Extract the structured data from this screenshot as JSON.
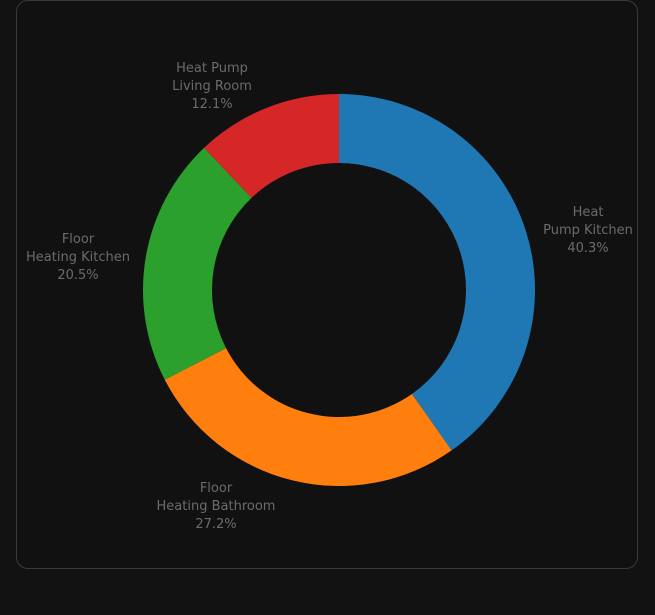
{
  "chart_data": {
    "type": "pie",
    "hole": true,
    "colors": [
      "#1f77b4",
      "#ff7f0e",
      "#2ca02c",
      "#d62728"
    ],
    "slices": [
      {
        "label_lines": [
          "Heat",
          "Pump Kitchen"
        ],
        "percent_text": "40.3%",
        "value": 40.3
      },
      {
        "label_lines": [
          "Floor",
          "Heating Bathroom"
        ],
        "percent_text": "27.2%",
        "value": 27.2
      },
      {
        "label_lines": [
          "Floor",
          "Heating Kitchen"
        ],
        "percent_text": "20.5%",
        "value": 20.5
      },
      {
        "label_lines": [
          "Heat Pump",
          "Living Room"
        ],
        "percent_text": "12.1%",
        "value": 12.1
      }
    ]
  }
}
